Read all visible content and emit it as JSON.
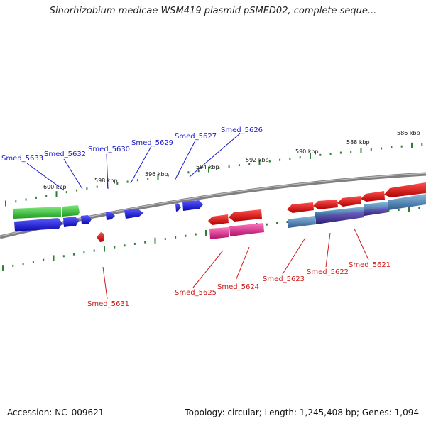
{
  "title": "Sinorhizobium medicae WSM419 plasmid pSMED02, complete seque...",
  "footer": {
    "accession": "Accession: NC_009621",
    "summary": "Topology: circular; Length: 1,245,408 bp; Genes: 1,094"
  },
  "ruler": {
    "labels": [
      "600 kbp",
      "598 kbp",
      "596 kbp",
      "594 kbp",
      "592 kbp",
      "590 kbp",
      "588 kbp",
      "586 kbp"
    ]
  },
  "gene_labels": {
    "top": [
      "Smed_5633",
      "Smed_5632",
      "Smed_5630",
      "Smed_5629",
      "Smed_5627",
      "Smed_5626"
    ],
    "bottom": [
      "Smed_5631",
      "Smed_5625",
      "Smed_5624",
      "Smed_5623",
      "Smed_5622",
      "Smed_5621"
    ]
  },
  "colors": {
    "forward_label": "#0000cc",
    "reverse_label": "#cc0000",
    "green": "#3cc43c",
    "blue": "#1a1adc",
    "red": "#e00000",
    "pink": "#e0208c",
    "steel": "#4a7fb5",
    "purple": "#4a3a9c",
    "tick": "#2e7d32",
    "backbone": "#808080"
  }
}
